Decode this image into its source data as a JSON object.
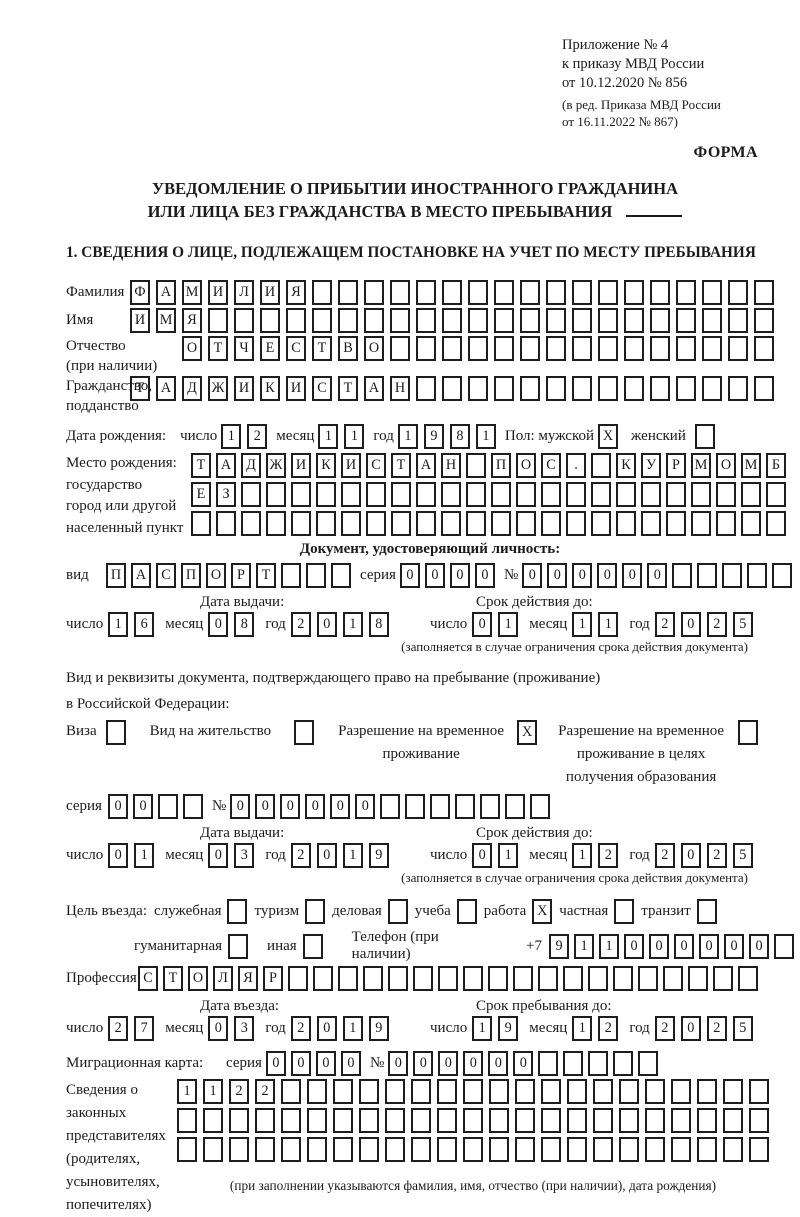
{
  "header": {
    "appendix": "Приложение № 4\nк приказу МВД России\nот 10.12.2020 № 856",
    "edition": "(в ред. Приказа МВД России\nот 16.11.2022 № 867)",
    "forma": "ФОРМА"
  },
  "title": {
    "line1": "УВЕДОМЛЕНИЕ О ПРИБЫТИИ ИНОСТРАННОГО ГРАЖДАНИНА",
    "line2": "ИЛИ ЛИЦА БЕЗ ГРАЖДАНСТВА В МЕСТО ПРЕБЫВАНИЯ"
  },
  "section1_heading": "1. СВЕДЕНИЯ О ЛИЦЕ, ПОДЛЕЖАЩЕМ ПОСТАНОВКЕ НА УЧЕТ ПО МЕСТУ ПРЕБЫВАНИЯ",
  "date_labels": {
    "day": "число",
    "month": "месяц",
    "year": "год"
  },
  "person": {
    "surname": {
      "label": "Фамилия",
      "boxes": {
        "value": "ФАМИЛИЯ",
        "count": 25
      }
    },
    "given_name": {
      "label": "Имя",
      "boxes": {
        "value": "ИМЯ",
        "count": 25
      }
    },
    "patronymic": {
      "label": "Отчество\n(при наличии)",
      "boxes": {
        "value": "ОТЧЕСТВО",
        "count": 23
      }
    },
    "citizenship": {
      "label": "Гражданство,\nподданство",
      "boxes": {
        "value": "ТАДЖИКИСТАН",
        "count": 25
      }
    },
    "birth_date": {
      "label": "Дата рождения:",
      "day": {
        "value": "12",
        "count": 2
      },
      "month": {
        "value": "11",
        "count": 2
      },
      "year": {
        "value": "1981",
        "count": 4
      }
    },
    "sex": {
      "label": "Пол: мужской",
      "male": {
        "value": "X",
        "count": 1
      },
      "female_label": "женский",
      "female": {
        "value": "",
        "count": 1
      }
    },
    "birth_place": {
      "label": "Место рождения:\nгосударство\nгород или другой\nнаселенный пункт",
      "line1": {
        "value": "ТАДЖИКИСТАН ПОС. КУРМОМБ",
        "count": 24
      },
      "line2": {
        "value": "ЕЗ",
        "count": 24
      },
      "line3": {
        "value": "",
        "count": 24
      }
    }
  },
  "identity_doc": {
    "heading": "Документ, удостоверяющий личность:",
    "kind_label": "вид",
    "kind": {
      "value": "ПАСПОРТ",
      "count": 10
    },
    "series_label": "серия",
    "series": {
      "value": "0000",
      "count": 4
    },
    "number_label": "№",
    "number": {
      "value": "000000",
      "count": 11
    },
    "issue_heading": "Дата выдачи:",
    "expiry_heading": "Срок действия до:",
    "issue": {
      "day": {
        "value": "16",
        "count": 2
      },
      "month": {
        "value": "08",
        "count": 2
      },
      "year": {
        "value": "2018",
        "count": 4
      }
    },
    "expiry": {
      "day": {
        "value": "01",
        "count": 2
      },
      "month": {
        "value": "11",
        "count": 2
      },
      "year": {
        "value": "2025",
        "count": 4
      }
    },
    "note": "(заполняется в случае ограничения срока действия документа)"
  },
  "residence_doc": {
    "intro1": "Вид и реквизиты документа, подтверждающего право на пребывание (проживание)",
    "intro2": "в Российской Федерации:",
    "visa_label": "Виза",
    "visa": {
      "value": "",
      "count": 1
    },
    "permit_label": "Вид на жительство",
    "permit": {
      "value": "",
      "count": 1
    },
    "temp_permit_label": "Разрешение на временное\nпроживание",
    "temp_permit": {
      "value": "X",
      "count": 1
    },
    "edu_permit_label": "Разрешение на временное\nпроживание в целях\nполучения образования",
    "edu_permit": {
      "value": "",
      "count": 1
    },
    "series_label": "серия",
    "series": {
      "value": "00",
      "count": 4
    },
    "number_label": "№",
    "number": {
      "value": "000000",
      "count": 13
    },
    "issue_heading": "Дата выдачи:",
    "expiry_heading": "Срок действия до:",
    "issue": {
      "day": {
        "value": "01",
        "count": 2
      },
      "month": {
        "value": "03",
        "count": 2
      },
      "year": {
        "value": "2019",
        "count": 4
      }
    },
    "expiry": {
      "day": {
        "value": "01",
        "count": 2
      },
      "month": {
        "value": "12",
        "count": 2
      },
      "year": {
        "value": "2025",
        "count": 4
      }
    },
    "note": "(заполняется в случае ограничения срока действия документа)"
  },
  "entry": {
    "purpose_label": "Цель въезда:",
    "purpose": [
      {
        "label": "служебная",
        "box": {
          "value": "",
          "count": 1
        }
      },
      {
        "label": "туризм",
        "box": {
          "value": "",
          "count": 1
        }
      },
      {
        "label": "деловая",
        "box": {
          "value": "",
          "count": 1
        }
      },
      {
        "label": "учеба",
        "box": {
          "value": "",
          "count": 1
        }
      },
      {
        "label": "работа",
        "box": {
          "value": "X",
          "count": 1
        }
      },
      {
        "label": "частная",
        "box": {
          "value": "",
          "count": 1
        }
      },
      {
        "label": "транзит",
        "box": {
          "value": "",
          "count": 1
        }
      },
      {
        "label": "гуманитарная",
        "box": {
          "value": "",
          "count": 1
        }
      },
      {
        "label": "иная",
        "box": {
          "value": "",
          "count": 1
        }
      }
    ],
    "phone_label": "Телефон (при наличии)",
    "phone_prefix": "+7",
    "phone": {
      "value": "911000000",
      "count": 10
    },
    "profession_label": "Профессия",
    "profession": {
      "value": "СТОЛЯР",
      "count": 25
    },
    "entry_date_heading": "Дата въезда:",
    "stay_until_heading": "Срок пребывания до:",
    "entry_date": {
      "day": {
        "value": "27",
        "count": 2
      },
      "month": {
        "value": "03",
        "count": 2
      },
      "year": {
        "value": "2019",
        "count": 4
      }
    },
    "stay_until": {
      "day": {
        "value": "19",
        "count": 2
      },
      "month": {
        "value": "12",
        "count": 2
      },
      "year": {
        "value": "2025",
        "count": 4
      }
    }
  },
  "migration_card": {
    "label": "Миграционная карта:",
    "series_label": "серия",
    "series": {
      "value": "0000",
      "count": 4
    },
    "number_label": "№",
    "number": {
      "value": "000000",
      "count": 11
    }
  },
  "representatives": {
    "label": "Сведения о\nзаконных\nпредставителях\n(родителях,\nусыновителях,\nпопечителях)",
    "row1": {
      "value": "1122",
      "count": 23
    },
    "row2": {
      "value": "",
      "count": 23
    },
    "row3": {
      "value": "",
      "count": 23
    },
    "note": "(при заполнении указываются фамилия, имя, отчество (при наличии), дата рождения)"
  }
}
